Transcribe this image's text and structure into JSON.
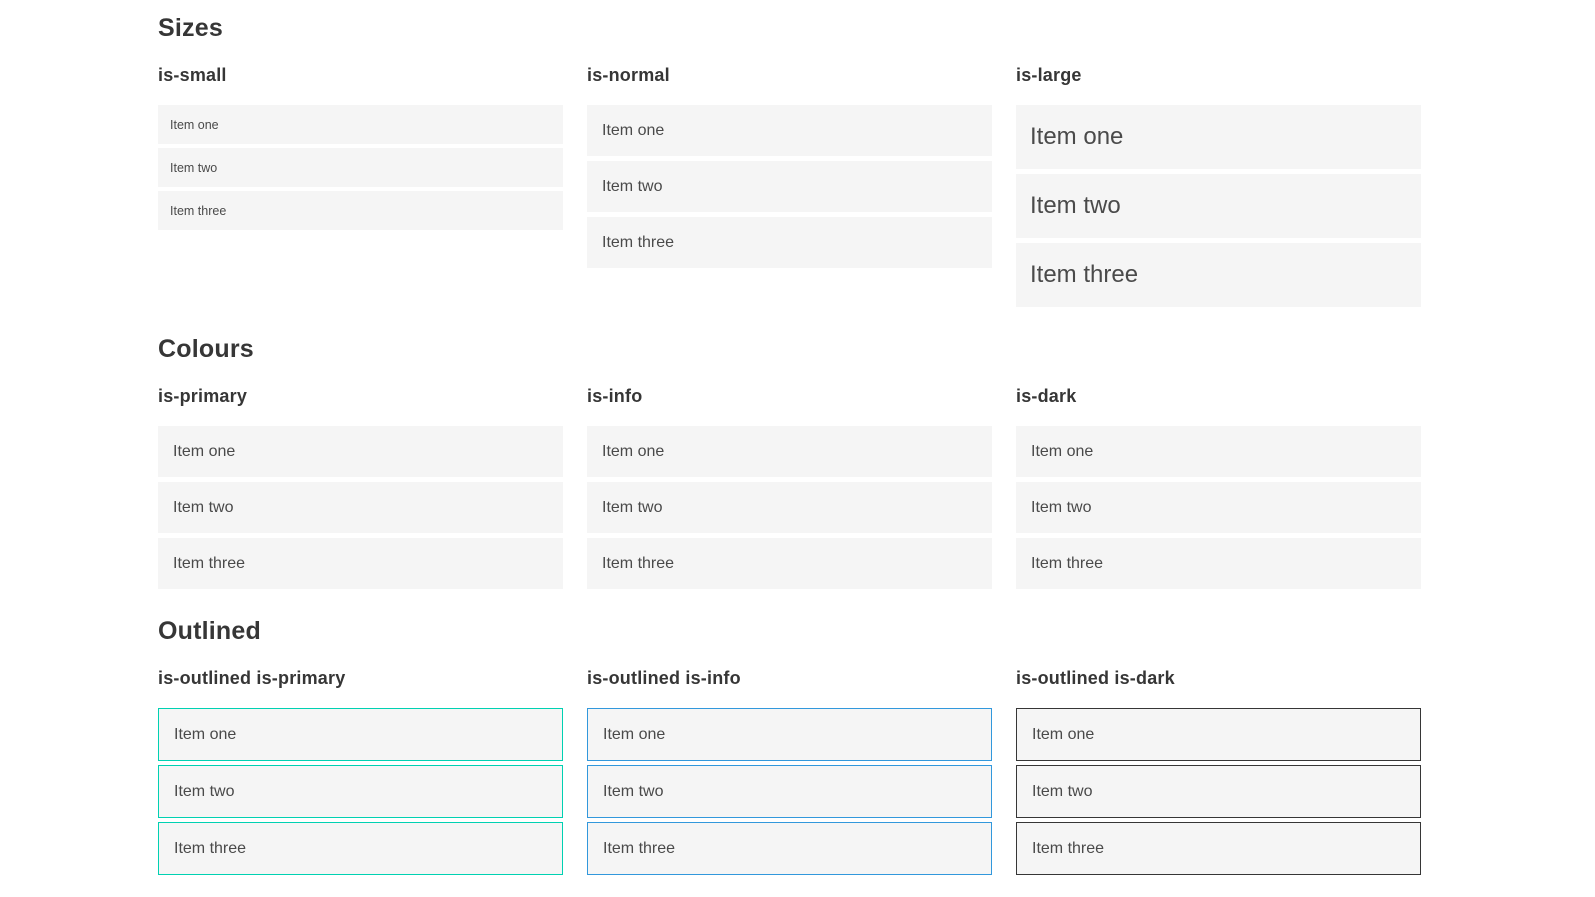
{
  "colors": {
    "primary": "#00d1b2",
    "info": "#3298dc",
    "dark": "#363636",
    "item_background": "#f5f5f5",
    "item_text": "#4a4a4a",
    "heading_text": "#363636",
    "on_color_text": "#ffffff",
    "page_background": "#ffffff"
  },
  "sections": [
    {
      "title": "Sizes",
      "groups": [
        {
          "label": "is-small",
          "items": [
            "Item one",
            "Item two",
            "Item three"
          ]
        },
        {
          "label": "is-normal",
          "items": [
            "Item one",
            "Item two",
            "Item three"
          ]
        },
        {
          "label": "is-large",
          "items": [
            "Item one",
            "Item two",
            "Item three"
          ]
        }
      ]
    },
    {
      "title": "Colours",
      "groups": [
        {
          "label": "is-primary",
          "items": [
            "Item one",
            "Item two",
            "Item three"
          ]
        },
        {
          "label": "is-info",
          "items": [
            "Item one",
            "Item two",
            "Item three"
          ]
        },
        {
          "label": "is-dark",
          "items": [
            "Item one",
            "Item two",
            "Item three"
          ]
        }
      ]
    },
    {
      "title": "Outlined",
      "groups": [
        {
          "label": "is-outlined is-primary",
          "items": [
            "Item one",
            "Item two",
            "Item three"
          ]
        },
        {
          "label": "is-outlined is-info",
          "items": [
            "Item one",
            "Item two",
            "Item three"
          ]
        },
        {
          "label": "is-outlined is-dark",
          "items": [
            "Item one",
            "Item two",
            "Item three"
          ]
        }
      ]
    }
  ]
}
